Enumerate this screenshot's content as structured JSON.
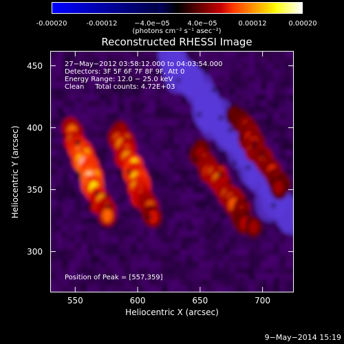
{
  "colorbar": {
    "ticks": [
      "-0.00020",
      "-0.00012",
      "−4.0e−05",
      "4.0e−05",
      "0.00012",
      "0.00020"
    ],
    "tick_values": [
      -0.0002,
      -0.00012,
      -4e-05,
      4e-05,
      0.00012,
      0.0002
    ],
    "range": [
      -0.0002,
      0.0002
    ],
    "units": "(photons cm⁻² s⁻¹ asec⁻²)"
  },
  "chart_data": {
    "type": "heatmap",
    "title": "Reconstructed RHESSI Image",
    "xlabel": "Heliocentric X (arcsec)",
    "ylabel": "Heliocentric Y (arcsec)",
    "xlim": [
      530,
      725
    ],
    "ylim": [
      267,
      462
    ],
    "x_ticks": [
      550,
      600,
      650,
      700
    ],
    "y_ticks": [
      300,
      350,
      400,
      450
    ],
    "colormap": "hot-blue (blue negative, red/yellow/white positive)",
    "peak_position": [
      557,
      359
    ],
    "bright_ridges": [
      {
        "from": [
          545,
          400
        ],
        "to": [
          575,
          330
        ],
        "level": 0.00019
      },
      {
        "from": [
          585,
          395
        ],
        "to": [
          610,
          330
        ],
        "level": 0.00016
      },
      {
        "from": [
          650,
          380
        ],
        "to": [
          690,
          320
        ],
        "level": 0.00012
      },
      {
        "from": [
          680,
          410
        ],
        "to": [
          715,
          350
        ],
        "level": 0.0001
      }
    ],
    "dark_regions": [
      {
        "from": [
          625,
          460
        ],
        "to": [
          720,
          330
        ],
        "level": -8e-05
      }
    ]
  },
  "info": {
    "lines": [
      "27−May−2012 03:58:12.000 to 04:03:54.000",
      "Detectors: 3F 5F 6F 7F 8F 9F, Att 0",
      "Energy Range: 12.0 − 25.0 keV",
      "Clean     Total counts: 4.72E+03"
    ],
    "peak": "Position of Peak = [557,359]"
  },
  "datestamp": "9−May−2014 15:19"
}
